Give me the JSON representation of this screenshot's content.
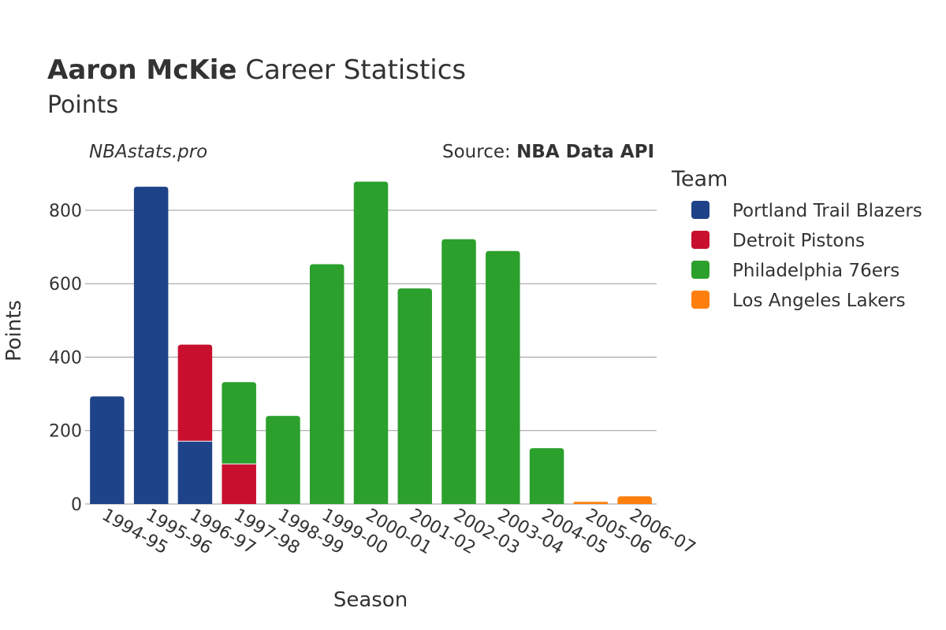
{
  "header": {
    "player_name": "Aaron McKie",
    "title_rest": " Career Statistics",
    "subtitle": "Points"
  },
  "watermark": "NBAstats.pro",
  "source": {
    "prefix": "Source: ",
    "name": "NBA Data API"
  },
  "chart_data": {
    "type": "bar",
    "stacked": true,
    "categories": [
      "1994-95",
      "1995-96",
      "1996-97",
      "1997-98",
      "1998-99",
      "1999-00",
      "2000-01",
      "2001-02",
      "2002-03",
      "2003-04",
      "2004-05",
      "2005-06",
      "2006-07"
    ],
    "series": [
      {
        "name": "Portland Trail Blazers",
        "color": "#1f4388",
        "values": [
          293,
          864,
          170,
          0,
          0,
          0,
          0,
          0,
          0,
          0,
          0,
          0,
          0
        ]
      },
      {
        "name": "Detroit Pistons",
        "color": "#c8102e",
        "values": [
          0,
          0,
          264,
          108,
          0,
          0,
          0,
          0,
          0,
          0,
          0,
          0,
          0
        ]
      },
      {
        "name": "Philadelphia 76ers",
        "color": "#2ca02c",
        "values": [
          0,
          0,
          0,
          224,
          240,
          653,
          878,
          587,
          721,
          689,
          152,
          0,
          0
        ]
      },
      {
        "name": "Los Angeles Lakers",
        "color": "#ff7f0e",
        "values": [
          0,
          0,
          0,
          0,
          0,
          0,
          0,
          0,
          0,
          0,
          0,
          6,
          21
        ]
      }
    ],
    "xlabel": "Season",
    "ylabel": "Points",
    "ylim": [
      0,
      905
    ],
    "yticks": [
      0,
      200,
      400,
      600,
      800
    ],
    "grid": true,
    "legend_title": "Team",
    "legend_position": "right"
  }
}
